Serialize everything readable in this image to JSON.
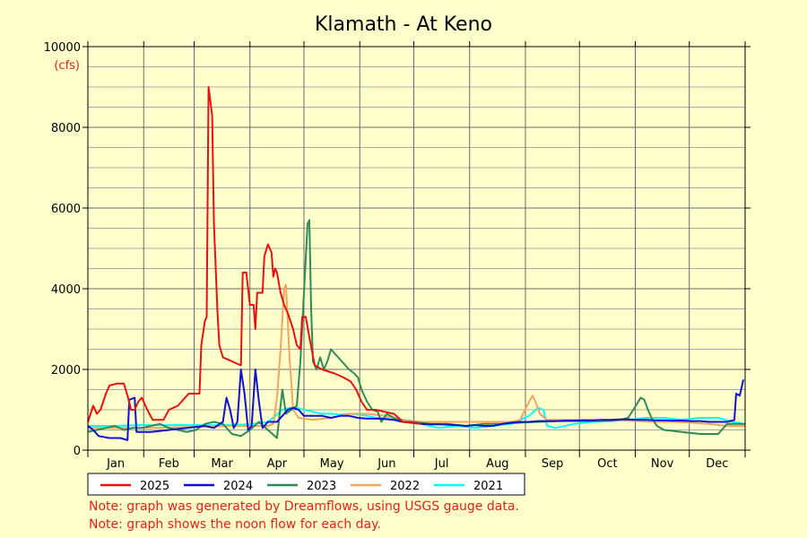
{
  "chart_data": {
    "type": "line",
    "title": "Klamath - At Keno",
    "ylabel": "(cfs)",
    "ylim": [
      0,
      10000
    ],
    "yticks": [
      0,
      2000,
      4000,
      6000,
      8000,
      10000
    ],
    "xlim": [
      0,
      365
    ],
    "months": [
      "Jan",
      "Feb",
      "Mar",
      "Apr",
      "May",
      "Jun",
      "Jul",
      "Aug",
      "Sep",
      "Oct",
      "Nov",
      "Dec"
    ],
    "grid": true,
    "legend_position": "bottom",
    "series": [
      {
        "name": "2025",
        "color": "#e81010",
        "points": [
          [
            0,
            700
          ],
          [
            3,
            1100
          ],
          [
            5,
            900
          ],
          [
            7,
            1000
          ],
          [
            10,
            1400
          ],
          [
            12,
            1600
          ],
          [
            16,
            1650
          ],
          [
            20,
            1650
          ],
          [
            22,
            1350
          ],
          [
            24,
            1000
          ],
          [
            26,
            1000
          ],
          [
            28,
            1200
          ],
          [
            30,
            1300
          ],
          [
            33,
            1000
          ],
          [
            36,
            750
          ],
          [
            42,
            750
          ],
          [
            45,
            1000
          ],
          [
            50,
            1100
          ],
          [
            54,
            1300
          ],
          [
            56,
            1400
          ],
          [
            58,
            1400
          ],
          [
            62,
            1400
          ],
          [
            63,
            2600
          ],
          [
            65,
            3200
          ],
          [
            66,
            3300
          ],
          [
            67,
            9000
          ],
          [
            69,
            8300
          ],
          [
            70,
            5600
          ],
          [
            72,
            3400
          ],
          [
            73,
            2600
          ],
          [
            75,
            2300
          ],
          [
            80,
            2200
          ],
          [
            85,
            2100
          ],
          [
            86,
            4400
          ],
          [
            88,
            4400
          ],
          [
            90,
            3600
          ],
          [
            92,
            3600
          ],
          [
            93,
            3000
          ],
          [
            94,
            3900
          ],
          [
            97,
            3900
          ],
          [
            98,
            4800
          ],
          [
            100,
            5100
          ],
          [
            102,
            4900
          ],
          [
            103,
            4300
          ],
          [
            104,
            4500
          ],
          [
            105,
            4400
          ],
          [
            107,
            3900
          ],
          [
            109,
            3600
          ],
          [
            111,
            3400
          ],
          [
            114,
            3000
          ],
          [
            116,
            2600
          ],
          [
            118,
            2500
          ],
          [
            119,
            3300
          ],
          [
            121,
            3300
          ],
          [
            123,
            2800
          ],
          [
            126,
            2100
          ],
          [
            130,
            2000
          ],
          [
            137,
            1900
          ],
          [
            142,
            1800
          ],
          [
            146,
            1700
          ],
          [
            149,
            1500
          ],
          [
            152,
            1200
          ],
          [
            155,
            1000
          ],
          [
            160,
            1000
          ],
          [
            165,
            950
          ],
          [
            170,
            900
          ],
          [
            175,
            700
          ],
          [
            185,
            650
          ]
        ]
      },
      {
        "name": "2024",
        "color": "#1010d0",
        "points": [
          [
            0,
            600
          ],
          [
            3,
            500
          ],
          [
            6,
            350
          ],
          [
            12,
            300
          ],
          [
            18,
            300
          ],
          [
            22,
            250
          ],
          [
            23,
            1250
          ],
          [
            26,
            1300
          ],
          [
            27,
            450
          ],
          [
            35,
            450
          ],
          [
            45,
            500
          ],
          [
            55,
            550
          ],
          [
            65,
            600
          ],
          [
            70,
            550
          ],
          [
            75,
            700
          ],
          [
            77,
            1300
          ],
          [
            79,
            1000
          ],
          [
            81,
            550
          ],
          [
            83,
            700
          ],
          [
            85,
            2000
          ],
          [
            87,
            1400
          ],
          [
            89,
            500
          ],
          [
            91,
            600
          ],
          [
            93,
            2000
          ],
          [
            95,
            1200
          ],
          [
            97,
            550
          ],
          [
            100,
            700
          ],
          [
            105,
            700
          ],
          [
            108,
            850
          ],
          [
            111,
            1000
          ],
          [
            114,
            1050
          ],
          [
            117,
            1000
          ],
          [
            120,
            850
          ],
          [
            125,
            850
          ],
          [
            130,
            850
          ],
          [
            135,
            800
          ],
          [
            140,
            850
          ],
          [
            145,
            850
          ],
          [
            150,
            800
          ],
          [
            155,
            780
          ],
          [
            160,
            780
          ],
          [
            165,
            770
          ],
          [
            170,
            750
          ],
          [
            175,
            700
          ],
          [
            180,
            680
          ],
          [
            185,
            650
          ],
          [
            190,
            640
          ],
          [
            195,
            640
          ],
          [
            200,
            630
          ],
          [
            205,
            620
          ],
          [
            210,
            600
          ],
          [
            215,
            620
          ],
          [
            220,
            600
          ],
          [
            225,
            600
          ],
          [
            230,
            650
          ],
          [
            235,
            680
          ],
          [
            240,
            700
          ],
          [
            245,
            700
          ],
          [
            250,
            720
          ],
          [
            255,
            720
          ],
          [
            260,
            720
          ],
          [
            265,
            730
          ],
          [
            270,
            730
          ],
          [
            275,
            740
          ],
          [
            280,
            740
          ],
          [
            285,
            750
          ],
          [
            290,
            750
          ],
          [
            295,
            760
          ],
          [
            300,
            760
          ],
          [
            305,
            750
          ],
          [
            310,
            750
          ],
          [
            315,
            740
          ],
          [
            320,
            740
          ],
          [
            325,
            730
          ],
          [
            330,
            730
          ],
          [
            335,
            720
          ],
          [
            340,
            720
          ],
          [
            345,
            700
          ],
          [
            350,
            700
          ],
          [
            355,
            700
          ],
          [
            359,
            750
          ],
          [
            360,
            1400
          ],
          [
            362,
            1350
          ],
          [
            364,
            1750
          ]
        ]
      },
      {
        "name": "2023",
        "color": "#2e8b57",
        "points": [
          [
            0,
            450
          ],
          [
            5,
            500
          ],
          [
            10,
            550
          ],
          [
            15,
            600
          ],
          [
            20,
            500
          ],
          [
            25,
            550
          ],
          [
            30,
            550
          ],
          [
            35,
            600
          ],
          [
            40,
            650
          ],
          [
            45,
            550
          ],
          [
            50,
            500
          ],
          [
            55,
            450
          ],
          [
            60,
            500
          ],
          [
            65,
            650
          ],
          [
            70,
            700
          ],
          [
            75,
            650
          ],
          [
            80,
            400
          ],
          [
            85,
            350
          ],
          [
            90,
            500
          ],
          [
            95,
            700
          ],
          [
            100,
            500
          ],
          [
            105,
            300
          ],
          [
            108,
            1500
          ],
          [
            110,
            900
          ],
          [
            113,
            1000
          ],
          [
            116,
            1100
          ],
          [
            118,
            2200
          ],
          [
            120,
            3900
          ],
          [
            122,
            5600
          ],
          [
            123,
            5700
          ],
          [
            124,
            3500
          ],
          [
            125,
            2200
          ],
          [
            127,
            2000
          ],
          [
            129,
            2300
          ],
          [
            131,
            2000
          ],
          [
            133,
            2200
          ],
          [
            135,
            2500
          ],
          [
            137,
            2400
          ],
          [
            139,
            2300
          ],
          [
            141,
            2200
          ],
          [
            143,
            2100
          ],
          [
            145,
            2000
          ],
          [
            148,
            1900
          ],
          [
            150,
            1800
          ],
          [
            152,
            1500
          ],
          [
            155,
            1200
          ],
          [
            158,
            1000
          ],
          [
            161,
            950
          ],
          [
            163,
            700
          ],
          [
            166,
            900
          ],
          [
            170,
            800
          ],
          [
            175,
            700
          ],
          [
            180,
            700
          ],
          [
            190,
            650
          ],
          [
            200,
            650
          ],
          [
            210,
            600
          ],
          [
            220,
            650
          ],
          [
            230,
            650
          ],
          [
            240,
            680
          ],
          [
            250,
            700
          ],
          [
            260,
            720
          ],
          [
            270,
            720
          ],
          [
            280,
            720
          ],
          [
            290,
            730
          ],
          [
            295,
            750
          ],
          [
            300,
            800
          ],
          [
            305,
            1150
          ],
          [
            307,
            1300
          ],
          [
            309,
            1250
          ],
          [
            311,
            1000
          ],
          [
            313,
            800
          ],
          [
            316,
            600
          ],
          [
            320,
            500
          ],
          [
            330,
            450
          ],
          [
            340,
            400
          ],
          [
            350,
            400
          ],
          [
            355,
            650
          ],
          [
            365,
            650
          ]
        ]
      },
      {
        "name": "2022",
        "color": "#f4a460",
        "points": [
          [
            0,
            550
          ],
          [
            20,
            550
          ],
          [
            40,
            550
          ],
          [
            60,
            580
          ],
          [
            80,
            600
          ],
          [
            95,
            600
          ],
          [
            100,
            600
          ],
          [
            103,
            650
          ],
          [
            105,
            1300
          ],
          [
            107,
            2500
          ],
          [
            109,
            4000
          ],
          [
            110,
            4100
          ],
          [
            112,
            2300
          ],
          [
            114,
            1000
          ],
          [
            117,
            800
          ],
          [
            125,
            750
          ],
          [
            135,
            800
          ],
          [
            145,
            900
          ],
          [
            155,
            900
          ],
          [
            165,
            850
          ],
          [
            175,
            750
          ],
          [
            185,
            700
          ],
          [
            195,
            700
          ],
          [
            205,
            700
          ],
          [
            215,
            700
          ],
          [
            225,
            700
          ],
          [
            235,
            700
          ],
          [
            240,
            750
          ],
          [
            245,
            1200
          ],
          [
            247,
            1350
          ],
          [
            249,
            1150
          ],
          [
            251,
            900
          ],
          [
            255,
            750
          ],
          [
            265,
            750
          ],
          [
            275,
            750
          ],
          [
            285,
            740
          ],
          [
            295,
            740
          ],
          [
            305,
            720
          ],
          [
            315,
            700
          ],
          [
            325,
            700
          ],
          [
            335,
            680
          ],
          [
            345,
            650
          ],
          [
            355,
            600
          ],
          [
            365,
            600
          ]
        ]
      },
      {
        "name": "2021",
        "color": "#00ffff",
        "points": [
          [
            0,
            600
          ],
          [
            15,
            600
          ],
          [
            30,
            620
          ],
          [
            45,
            620
          ],
          [
            60,
            620
          ],
          [
            75,
            620
          ],
          [
            90,
            640
          ],
          [
            100,
            700
          ],
          [
            104,
            850
          ],
          [
            108,
            1000
          ],
          [
            112,
            1050
          ],
          [
            116,
            1050
          ],
          [
            120,
            1000
          ],
          [
            125,
            950
          ],
          [
            130,
            900
          ],
          [
            135,
            900
          ],
          [
            140,
            880
          ],
          [
            145,
            900
          ],
          [
            150,
            880
          ],
          [
            155,
            850
          ],
          [
            160,
            800
          ],
          [
            165,
            800
          ],
          [
            170,
            750
          ],
          [
            175,
            700
          ],
          [
            185,
            650
          ],
          [
            190,
            600
          ],
          [
            195,
            550
          ],
          [
            205,
            600
          ],
          [
            215,
            550
          ],
          [
            225,
            600
          ],
          [
            235,
            650
          ],
          [
            245,
            850
          ],
          [
            250,
            1050
          ],
          [
            253,
            1000
          ],
          [
            255,
            600
          ],
          [
            260,
            550
          ],
          [
            270,
            650
          ],
          [
            280,
            700
          ],
          [
            290,
            720
          ],
          [
            300,
            750
          ],
          [
            310,
            800
          ],
          [
            320,
            800
          ],
          [
            330,
            750
          ],
          [
            340,
            800
          ],
          [
            350,
            800
          ],
          [
            358,
            700
          ],
          [
            365,
            650
          ]
        ]
      }
    ]
  },
  "notes": [
    "Note: graph was generated by Dreamflows, using USGS gauge data.",
    "Note: graph shows the noon flow for each day."
  ]
}
